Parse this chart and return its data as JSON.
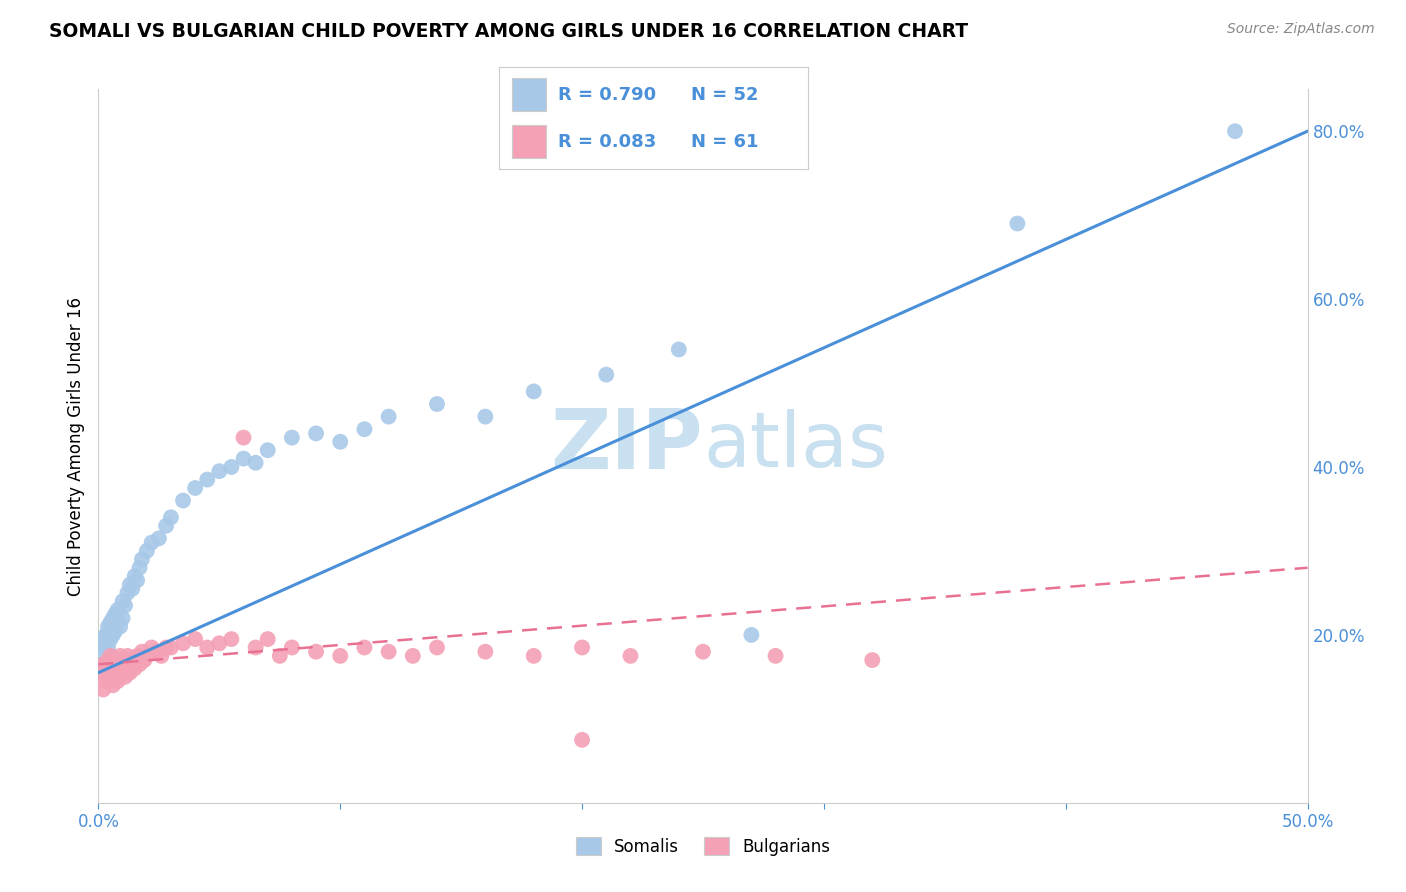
{
  "title": "SOMALI VS BULGARIAN CHILD POVERTY AMONG GIRLS UNDER 16 CORRELATION CHART",
  "source": "Source: ZipAtlas.com",
  "ylabel_label": "Child Poverty Among Girls Under 16",
  "xlim": [
    0.0,
    0.5
  ],
  "ylim": [
    0.0,
    0.85
  ],
  "somali_R": 0.79,
  "somali_N": 52,
  "bulgarian_R": 0.083,
  "bulgarian_N": 61,
  "somali_color": "#a8c8e8",
  "bulgarian_color": "#f4a0b5",
  "somali_line_color": "#4a90d9",
  "bulgarian_line_color": "#e87090",
  "legend_text_color": "#4a90d9",
  "watermark_zip_color": "#c8e0f0",
  "watermark_atlas_color": "#c8e0f0",
  "somali_x": [
    0.001,
    0.002,
    0.002,
    0.003,
    0.003,
    0.004,
    0.004,
    0.005,
    0.005,
    0.006,
    0.006,
    0.007,
    0.007,
    0.008,
    0.008,
    0.009,
    0.01,
    0.01,
    0.011,
    0.012,
    0.013,
    0.014,
    0.015,
    0.016,
    0.017,
    0.018,
    0.02,
    0.022,
    0.025,
    0.028,
    0.03,
    0.035,
    0.04,
    0.045,
    0.05,
    0.055,
    0.06,
    0.065,
    0.07,
    0.08,
    0.09,
    0.1,
    0.11,
    0.12,
    0.14,
    0.16,
    0.18,
    0.21,
    0.24,
    0.27,
    0.38,
    0.47
  ],
  "somali_y": [
    0.175,
    0.185,
    0.195,
    0.19,
    0.2,
    0.185,
    0.21,
    0.195,
    0.215,
    0.2,
    0.22,
    0.205,
    0.225,
    0.215,
    0.23,
    0.21,
    0.22,
    0.24,
    0.235,
    0.25,
    0.26,
    0.255,
    0.27,
    0.265,
    0.28,
    0.29,
    0.3,
    0.31,
    0.315,
    0.33,
    0.34,
    0.36,
    0.375,
    0.385,
    0.395,
    0.4,
    0.41,
    0.405,
    0.42,
    0.435,
    0.44,
    0.43,
    0.445,
    0.46,
    0.475,
    0.46,
    0.49,
    0.51,
    0.54,
    0.2,
    0.69,
    0.8
  ],
  "bulgarian_x": [
    0.001,
    0.002,
    0.002,
    0.003,
    0.003,
    0.004,
    0.004,
    0.005,
    0.005,
    0.006,
    0.006,
    0.007,
    0.007,
    0.008,
    0.008,
    0.009,
    0.009,
    0.01,
    0.01,
    0.011,
    0.011,
    0.012,
    0.012,
    0.013,
    0.013,
    0.014,
    0.015,
    0.016,
    0.017,
    0.018,
    0.019,
    0.02,
    0.022,
    0.024,
    0.026,
    0.028,
    0.03,
    0.035,
    0.04,
    0.045,
    0.05,
    0.055,
    0.06,
    0.065,
    0.07,
    0.075,
    0.08,
    0.09,
    0.1,
    0.11,
    0.12,
    0.13,
    0.14,
    0.16,
    0.18,
    0.2,
    0.22,
    0.25,
    0.28,
    0.32,
    0.2
  ],
  "bulgarian_y": [
    0.155,
    0.165,
    0.135,
    0.145,
    0.16,
    0.15,
    0.17,
    0.155,
    0.175,
    0.16,
    0.14,
    0.165,
    0.15,
    0.17,
    0.145,
    0.16,
    0.175,
    0.155,
    0.165,
    0.17,
    0.15,
    0.16,
    0.175,
    0.165,
    0.155,
    0.17,
    0.16,
    0.175,
    0.165,
    0.18,
    0.17,
    0.175,
    0.185,
    0.18,
    0.175,
    0.185,
    0.185,
    0.19,
    0.195,
    0.185,
    0.19,
    0.195,
    0.435,
    0.185,
    0.195,
    0.175,
    0.185,
    0.18,
    0.175,
    0.185,
    0.18,
    0.175,
    0.185,
    0.18,
    0.175,
    0.185,
    0.175,
    0.18,
    0.175,
    0.17,
    0.075
  ],
  "somali_line_x0": 0.0,
  "somali_line_y0": 0.155,
  "somali_line_x1": 0.5,
  "somali_line_y1": 0.8,
  "bulg_line_x0": 0.0,
  "bulg_line_y0": 0.165,
  "bulg_line_x1": 0.5,
  "bulg_line_y1": 0.28
}
